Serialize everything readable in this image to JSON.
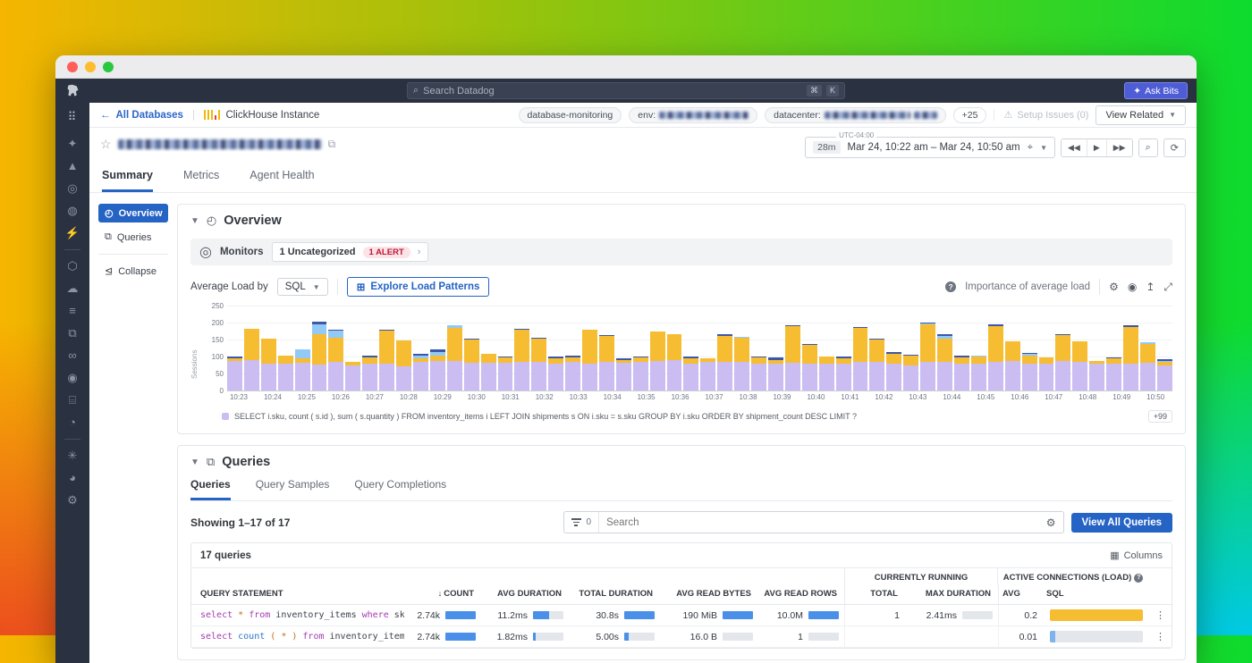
{
  "topbar": {
    "search_placeholder": "Search Datadog",
    "shortcut_cmd": "⌘",
    "shortcut_k": "K",
    "ask_bits_label": "Ask Bits"
  },
  "rail_icons": [
    {
      "name": "pointer-icon",
      "glyph": "✦"
    },
    {
      "name": "metrics-icon",
      "glyph": "▲"
    },
    {
      "name": "watchdog-icon",
      "glyph": "◎"
    },
    {
      "name": "llm-observability-icon",
      "glyph": "◍"
    },
    {
      "name": "bolt-icon",
      "glyph": "⚡"
    },
    {
      "name": "divider",
      "glyph": ""
    },
    {
      "name": "service-map-icon",
      "glyph": "⬡"
    },
    {
      "name": "cloud-security-icon",
      "glyph": "☁"
    },
    {
      "name": "logs-icon",
      "glyph": "≡"
    },
    {
      "name": "dashboards-icon",
      "glyph": "⧉"
    },
    {
      "name": "integrations-icon",
      "glyph": "∞"
    },
    {
      "name": "security-icon",
      "glyph": "◉"
    },
    {
      "name": "notebooks-icon",
      "glyph": "⌸"
    },
    {
      "name": "monitors-icon",
      "glyph": "◔"
    },
    {
      "name": "divider",
      "glyph": ""
    },
    {
      "name": "bug-icon",
      "glyph": "✳"
    },
    {
      "name": "gauge-icon",
      "glyph": "◕"
    },
    {
      "name": "settings-icon",
      "glyph": "⚙"
    }
  ],
  "breadcrumb": {
    "back_link": "All Databases",
    "instance_label": "ClickHouse Instance"
  },
  "header_tags": {
    "tag_monitoring": "database-monitoring",
    "env_prefix": "env:",
    "datacenter_prefix": "datacenter:",
    "more_count": "+25",
    "setup_issues": "Setup Issues (0)",
    "view_related": "View Related"
  },
  "timebar": {
    "timezone": "UTC-04:00",
    "duration_chip": "28m",
    "range_text": "Mar 24, 10:22 am – Mar 24, 10:50 am"
  },
  "page_tabs": [
    {
      "label": "Summary",
      "active": true
    },
    {
      "label": "Metrics",
      "active": false
    },
    {
      "label": "Agent Health",
      "active": false
    }
  ],
  "section_nav": [
    {
      "label": "Overview",
      "icon": "gauge-icon",
      "glyph": "◴",
      "active": true
    },
    {
      "label": "Queries",
      "icon": "queries-icon",
      "glyph": "⧉",
      "active": false
    },
    {
      "label": "Collapse",
      "icon": "collapse-icon",
      "glyph": "⊴",
      "active": false
    }
  ],
  "overview": {
    "title": "Overview",
    "monitors_label": "Monitors",
    "monitor_group": "1 Uncategorized",
    "alert_badge": "1 ALERT",
    "avg_load_label": "Average Load by",
    "avg_load_value": "SQL",
    "explore_btn": "Explore Load Patterns",
    "importance_label": "Importance of average load"
  },
  "chart_data": {
    "type": "bar",
    "stacked": true,
    "title": "Average Load by SQL",
    "ylabel": "Sessions",
    "ylim": [
      0,
      250
    ],
    "yticks": [
      250,
      200,
      150,
      100,
      50,
      0
    ],
    "categories": [
      "10:23",
      "10:24",
      "10:25",
      "10:26",
      "10:27",
      "10:28",
      "10:29",
      "10:30",
      "10:31",
      "10:32",
      "10:33",
      "10:34",
      "10:35",
      "10:36",
      "10:37",
      "10:38",
      "10:39",
      "10:40",
      "10:41",
      "10:42",
      "10:43",
      "10:44",
      "10:45",
      "10:46",
      "10:47",
      "10:48",
      "10:49",
      "10:50"
    ],
    "series_colors": {
      "purple": "#cbbcf2",
      "yellow": "#f6bd32",
      "lightblue": "#92c9f5",
      "navy": "#3d57a8"
    },
    "bars": [
      [
        88,
        8,
        0,
        4
      ],
      [
        90,
        92,
        0,
        0
      ],
      [
        80,
        73,
        0,
        0
      ],
      [
        80,
        22,
        0,
        2
      ],
      [
        82,
        12,
        26,
        0
      ],
      [
        76,
        90,
        30,
        6
      ],
      [
        85,
        70,
        22,
        2
      ],
      [
        75,
        8,
        0,
        0
      ],
      [
        80,
        18,
        0,
        4
      ],
      [
        80,
        97,
        0,
        3
      ],
      [
        70,
        78,
        0,
        0
      ],
      [
        85,
        10,
        7,
        5
      ],
      [
        87,
        17,
        8,
        10
      ],
      [
        88,
        95,
        8,
        0
      ],
      [
        82,
        68,
        0,
        3
      ],
      [
        82,
        26,
        0,
        0
      ],
      [
        82,
        15,
        0,
        3
      ],
      [
        85,
        93,
        0,
        4
      ],
      [
        83,
        70,
        0,
        2
      ],
      [
        78,
        17,
        0,
        4
      ],
      [
        85,
        13,
        0,
        4
      ],
      [
        80,
        98,
        0,
        0
      ],
      [
        85,
        75,
        0,
        3
      ],
      [
        82,
        8,
        0,
        4
      ],
      [
        83,
        14,
        0,
        4
      ],
      [
        87,
        86,
        0,
        2
      ],
      [
        90,
        76,
        0,
        0
      ],
      [
        80,
        15,
        0,
        5
      ],
      [
        83,
        12,
        0,
        0
      ],
      [
        85,
        75,
        0,
        5
      ],
      [
        83,
        72,
        3,
        0
      ],
      [
        80,
        18,
        0,
        3
      ],
      [
        78,
        12,
        0,
        8
      ],
      [
        82,
        108,
        0,
        2
      ],
      [
        80,
        55,
        0,
        3
      ],
      [
        80,
        20,
        0,
        0
      ],
      [
        80,
        15,
        0,
        5
      ],
      [
        85,
        100,
        0,
        3
      ],
      [
        85,
        65,
        0,
        2
      ],
      [
        80,
        28,
        0,
        6
      ],
      [
        75,
        28,
        0,
        3
      ],
      [
        85,
        110,
        3,
        3
      ],
      [
        85,
        68,
        8,
        4
      ],
      [
        80,
        18,
        0,
        5
      ],
      [
        80,
        20,
        3,
        0
      ],
      [
        85,
        105,
        0,
        4
      ],
      [
        88,
        58,
        0,
        0
      ],
      [
        80,
        22,
        5,
        3
      ],
      [
        78,
        20,
        0,
        0
      ],
      [
        88,
        75,
        0,
        4
      ],
      [
        85,
        60,
        0,
        0
      ],
      [
        78,
        10,
        0,
        0
      ],
      [
        80,
        15,
        0,
        3
      ],
      [
        80,
        108,
        0,
        4
      ],
      [
        82,
        55,
        5,
        0
      ],
      [
        75,
        10,
        3,
        3
      ]
    ],
    "legend": [
      {
        "color": "#cbbcf2",
        "label": "SELECT i.sku, count ( s.id ), sum ( s.quantity ) FROM inventory_items i LEFT JOIN shipments s ON i.sku = s.sku GROUP BY i.sku ORDER BY shipment_count DESC LIMIT ?"
      }
    ],
    "legend_more": "+99"
  },
  "queries": {
    "title": "Queries",
    "tabs": [
      {
        "label": "Queries",
        "active": true
      },
      {
        "label": "Query Samples",
        "active": false
      },
      {
        "label": "Query Completions",
        "active": false
      }
    ],
    "showing": "Showing 1–17 of 17",
    "filter_count": "0",
    "search_placeholder": "Search",
    "view_all_btn": "View All Queries",
    "table": {
      "count_label": "17 queries",
      "columns_btn": "Columns",
      "group_headers": {
        "currently_running": "CURRENTLY RUNNING",
        "active_connections": "ACTIVE CONNECTIONS (LOAD)"
      },
      "headers": [
        "QUERY STATEMENT",
        "COUNT",
        "AVG DURATION",
        "TOTAL DURATION",
        "AVG READ BYTES",
        "AVG READ ROWS",
        "TOTAL",
        "MAX DURATION",
        "AVG",
        "SQL"
      ],
      "rows": [
        {
          "sql": [
            {
              "t": "select",
              "c": "kw"
            },
            {
              "t": " * ",
              "c": "op"
            },
            {
              "t": "from",
              "c": "kw"
            },
            {
              "t": " inventory_items ",
              "c": "id"
            },
            {
              "t": "where",
              "c": "kw"
            },
            {
              "t": " sku ",
              "c": "id"
            },
            {
              "t": "=",
              "c": "op"
            },
            {
              "t": " ?",
              "c": "id"
            }
          ],
          "count": {
            "v": "2.74k",
            "pct": 100,
            "color": "#4a90e8"
          },
          "avg_duration": {
            "v": "11.2ms",
            "pct": 52,
            "color": "#4a90e8"
          },
          "total_duration": {
            "v": "30.8s",
            "pct": 100,
            "color": "#4a90e8"
          },
          "avg_read_bytes": {
            "v": "190 MiB",
            "pct": 100,
            "color": "#4a90e8"
          },
          "avg_read_rows": {
            "v": "10.0M",
            "pct": 100,
            "color": "#4a90e8"
          },
          "running_total": "1",
          "max_duration": {
            "v": "2.41ms",
            "pct": 0,
            "color": "#4a90e8"
          },
          "load_avg": "0.2",
          "load_bar": {
            "pct": 100,
            "color": "#f6bd32"
          }
        },
        {
          "sql": [
            {
              "t": "select",
              "c": "kw"
            },
            {
              "t": " count ",
              "c": "fn"
            },
            {
              "t": "( * )",
              "c": "op"
            },
            {
              "t": " from",
              "c": "kw"
            },
            {
              "t": " inventory_items",
              "c": "id"
            }
          ],
          "count": {
            "v": "2.74k",
            "pct": 100,
            "color": "#4a90e8"
          },
          "avg_duration": {
            "v": "1.82ms",
            "pct": 10,
            "color": "#4a90e8"
          },
          "total_duration": {
            "v": "5.00s",
            "pct": 14,
            "color": "#4a90e8"
          },
          "avg_read_bytes": {
            "v": "16.0 B",
            "pct": 0,
            "color": "#4a90e8"
          },
          "avg_read_rows": {
            "v": "1",
            "pct": 0,
            "color": "#4a90e8"
          },
          "running_total": "",
          "max_duration": {
            "v": "",
            "pct": 0,
            "color": "#4a90e8"
          },
          "load_avg": "0.01",
          "load_bar": {
            "pct": 6,
            "color": "#7fb3f0"
          }
        }
      ]
    }
  }
}
